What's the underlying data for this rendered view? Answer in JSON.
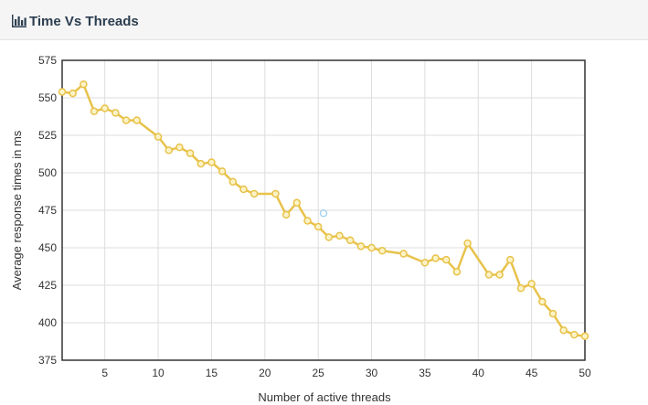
{
  "panel": {
    "title": "Time Vs Threads",
    "title_icon": "bar-chart-icon"
  },
  "chart_data": {
    "type": "line",
    "title": "",
    "xlabel": "Number of active threads",
    "ylabel": "Average response times in ms",
    "xlim": [
      1,
      50
    ],
    "ylim": [
      375,
      575
    ],
    "x_ticks": [
      "5",
      "10",
      "15",
      "20",
      "25",
      "30",
      "35",
      "40",
      "45",
      "50"
    ],
    "y_ticks": [
      "375",
      "400",
      "425",
      "450",
      "475",
      "500",
      "525",
      "550",
      "575"
    ],
    "grid": true,
    "legend": "none",
    "line_color": "#e8c24a",
    "marker_fill": "#fbf3c6",
    "series": [
      {
        "x": [
          1,
          2,
          3,
          4,
          5,
          6,
          7,
          8,
          10,
          11,
          12,
          13,
          14,
          15,
          16,
          17,
          18,
          19,
          21,
          22,
          23,
          24,
          25,
          26,
          27,
          28,
          29,
          30,
          31,
          33,
          35,
          36,
          37,
          38,
          39,
          41,
          42,
          43,
          44,
          45,
          46,
          47,
          48,
          49,
          50
        ],
        "values": [
          554,
          553,
          559,
          541,
          543,
          540,
          535,
          535,
          524,
          515,
          517,
          513,
          506,
          507,
          501,
          494,
          489,
          486,
          486,
          472,
          480,
          468,
          464,
          457,
          458,
          455,
          451,
          450,
          448,
          446,
          440,
          443,
          442,
          434,
          453,
          432,
          432,
          442,
          423,
          426,
          414,
          406,
          395,
          392,
          391
        ]
      }
    ],
    "hover_marker": {
      "x": 25.5,
      "y": 473,
      "color": "#a9d4f0"
    }
  }
}
